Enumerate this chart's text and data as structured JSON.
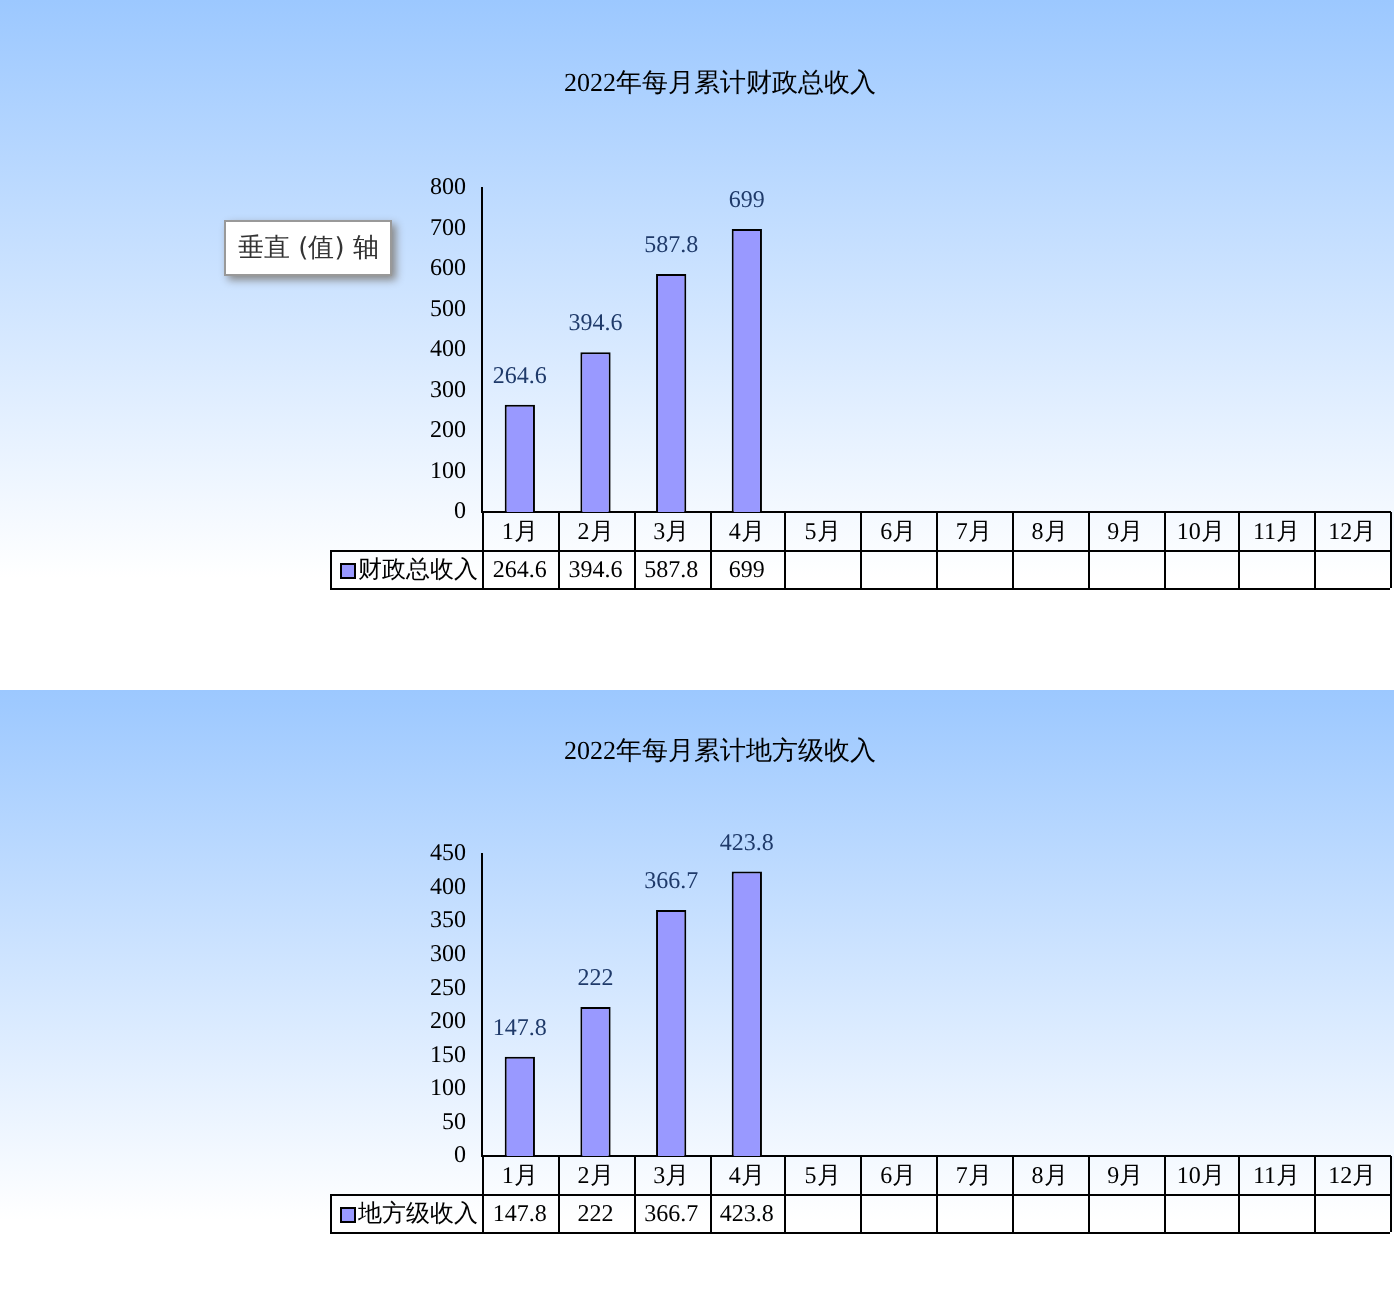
{
  "chart_data": [
    {
      "type": "bar",
      "title": "2022年每月累计财政总收入",
      "categories": [
        "1月",
        "2月",
        "3月",
        "4月",
        "5月",
        "6月",
        "7月",
        "8月",
        "9月",
        "10月",
        "11月",
        "12月"
      ],
      "series": [
        {
          "name": "财政总收入",
          "color": "#9999ff",
          "values": [
            264.6,
            394.6,
            587.8,
            699,
            null,
            null,
            null,
            null,
            null,
            null,
            null,
            null
          ]
        }
      ],
      "ylim": [
        0,
        800
      ],
      "yticks": [
        0,
        100,
        200,
        300,
        400,
        500,
        600,
        700,
        800
      ],
      "data_labels": true,
      "annotations": [
        "垂直 (值) 轴",
        {
          "text": "264.6",
          "x": "1月",
          "y": 264.6
        },
        {
          "text": "394.6",
          "x": "2月",
          "y": 394.6
        },
        {
          "text": "587.8",
          "x": "3月",
          "y": 587.8
        },
        {
          "text": "699",
          "x": "4月",
          "y": 699
        }
      ]
    },
    {
      "type": "bar",
      "title": "2022年每月累计地方级收入",
      "categories": [
        "1月",
        "2月",
        "3月",
        "4月",
        "5月",
        "6月",
        "7月",
        "8月",
        "9月",
        "10月",
        "11月",
        "12月"
      ],
      "series": [
        {
          "name": "地方级收入",
          "color": "#9999ff",
          "values": [
            147.8,
            222,
            366.7,
            423.8,
            null,
            null,
            null,
            null,
            null,
            null,
            null,
            null
          ]
        }
      ],
      "ylim": [
        0,
        450
      ],
      "yticks": [
        0,
        50,
        100,
        150,
        200,
        250,
        300,
        350,
        400,
        450
      ],
      "data_labels": true,
      "annotations": [
        {
          "text": "147.8",
          "x": "1月",
          "y": 147.8
        },
        {
          "text": "222",
          "x": "2月",
          "y": 222
        },
        {
          "text": "366.7",
          "x": "3月",
          "y": 366.7
        },
        {
          "text": "423.8",
          "x": "4月",
          "y": 423.8
        }
      ]
    }
  ]
}
